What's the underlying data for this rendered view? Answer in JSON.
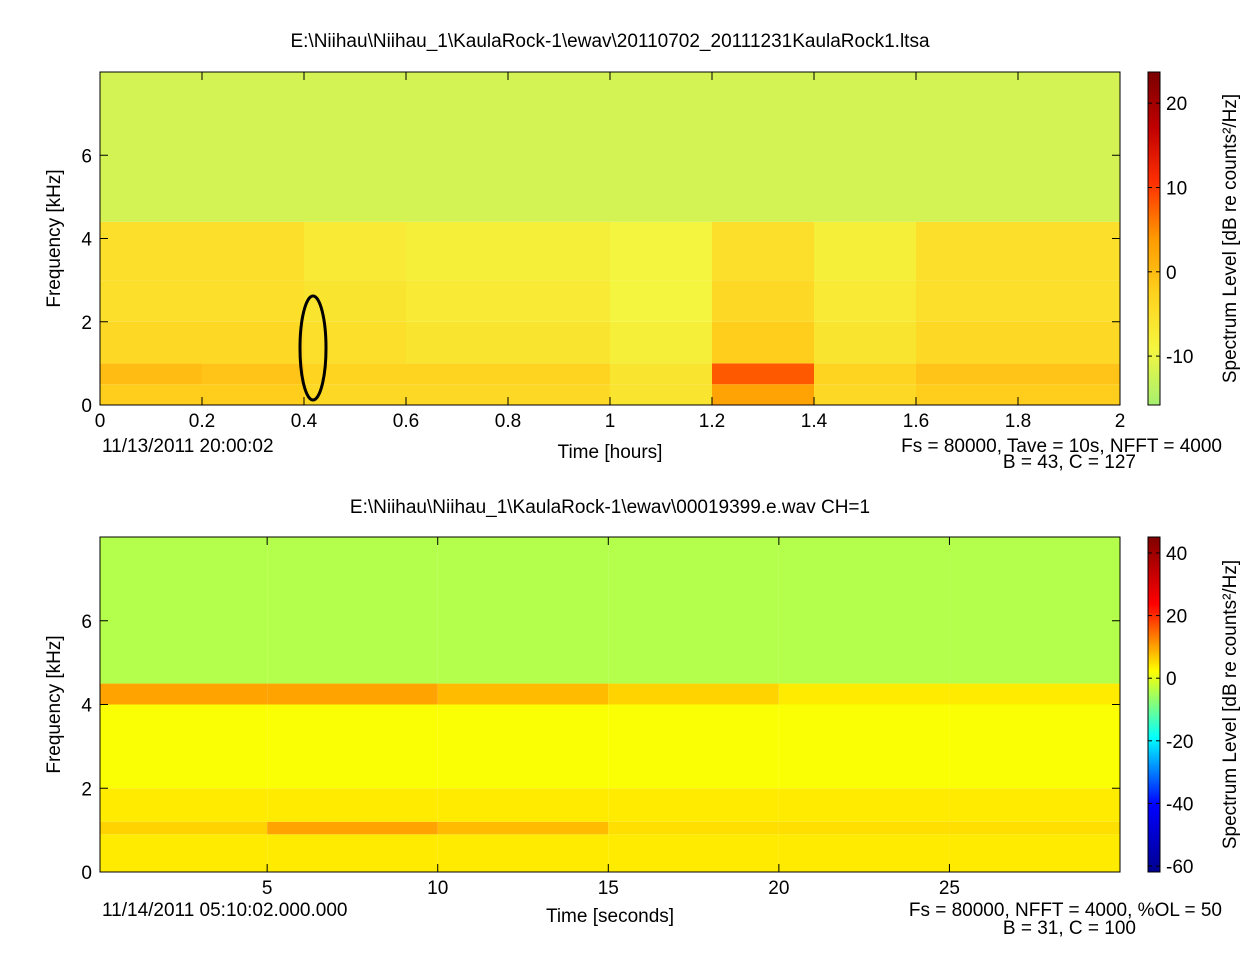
{
  "chart_data": [
    {
      "type": "heatmap",
      "title": "E:\\Niihau\\Niihau_1\\KaulaRock-1\\ewav\\20110702_20111231KaulaRock1.ltsa",
      "x_label": "Time [hours]",
      "y_label": "Frequency [kHz]",
      "colorbar_label": "Spectrum Level [dB re counts²/Hz]",
      "annotations": [
        "11/13/2011 20:00:02",
        "Fs = 80000, Tave = 10s, NFFT = 4000",
        "B = 43, C = 127"
      ],
      "xlim": [
        0,
        2
      ],
      "xticks": [
        0,
        0.2,
        0.4,
        0.6,
        0.8,
        1,
        1.2,
        1.4,
        1.6,
        1.8,
        2
      ],
      "ylim": [
        0,
        8
      ],
      "yticks": [
        0,
        2,
        4,
        6
      ],
      "clim": [
        -15.8,
        23.7
      ],
      "cticks": [
        -10,
        0,
        10,
        20
      ],
      "colormap": [
        "#a6f070",
        "#f4f640",
        "#ffd21e",
        "#ff9a00",
        "#ff3000",
        "#c00000",
        "#7a0000"
      ],
      "xbins": [
        0,
        0.2,
        0.4,
        0.6,
        0.8,
        1,
        1.2,
        1.4,
        1.6,
        1.8,
        2
      ],
      "ybins": [
        0,
        0.5,
        1,
        2,
        3,
        4.4,
        8
      ],
      "z": [
        [
          -2,
          -2,
          -4,
          -4,
          -4,
          -6,
          3,
          -4,
          -2,
          -2
        ],
        [
          0,
          -1,
          -3,
          -3,
          -3,
          -6,
          8,
          -3,
          -1,
          -1
        ],
        [
          -4,
          -4,
          -5,
          -6,
          -6,
          -8,
          -2,
          -6,
          -4,
          -4
        ],
        [
          -5,
          -5,
          -6,
          -7,
          -7,
          -9,
          -4,
          -7,
          -5,
          -5
        ],
        [
          -5,
          -5,
          -7,
          -8,
          -8,
          -9,
          -5,
          -8,
          -5,
          -5
        ],
        [
          -12,
          -12,
          -12,
          -12,
          -12,
          -12,
          -12,
          -12,
          -12,
          -12
        ]
      ]
    },
    {
      "type": "heatmap",
      "title": "E:\\Niihau\\Niihau_1\\KaulaRock-1\\ewav\\00019399.e.wav CH=1",
      "x_label": "Time [seconds]",
      "y_label": "Frequency [kHz]",
      "colorbar_label": "Spectrum Level [dB re counts²/Hz]",
      "annotations": [
        "11/14/2011 05:10:02.000.000",
        "Fs = 80000, NFFT = 4000, %OL = 50",
        "B = 31, C = 100"
      ],
      "xlim": [
        0.1,
        30
      ],
      "xticks": [
        5,
        10,
        15,
        20,
        25
      ],
      "ylim": [
        0,
        8
      ],
      "yticks": [
        0,
        2,
        4,
        6
      ],
      "clim": [
        -61.9,
        45.1
      ],
      "cticks": [
        -60,
        -40,
        -20,
        0,
        20,
        40
      ],
      "colormap": [
        "#00008f",
        "#0000ff",
        "#00ffff",
        "#ffff00",
        "#ff0000",
        "#800000"
      ],
      "xbins": [
        0.1,
        5,
        10,
        15,
        20,
        25,
        30
      ],
      "ybins": [
        0,
        0.9,
        1.2,
        2,
        4,
        4.5,
        8
      ],
      "z": [
        [
          4,
          4,
          4,
          4,
          4,
          4
        ],
        [
          6,
          10,
          8,
          5,
          5,
          5
        ],
        [
          4,
          4,
          4,
          4,
          4,
          4
        ],
        [
          2,
          2,
          2,
          2,
          2,
          2
        ],
        [
          10,
          10,
          8,
          6,
          4,
          4
        ],
        [
          -4,
          -4,
          -4,
          -4,
          -4,
          -4
        ]
      ]
    }
  ]
}
